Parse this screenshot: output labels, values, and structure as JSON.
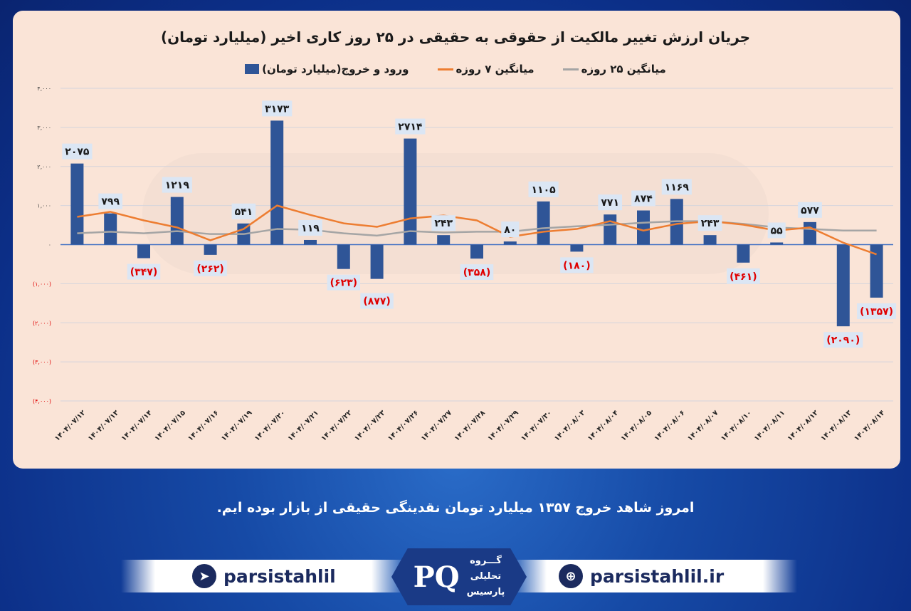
{
  "chart_data": {
    "type": "bar",
    "title": "جریان ارزش تغییر مالکیت از حقوقی به حقیقی در ۲۵ روز کاری اخیر (میلیارد تومان)",
    "xlabel": "",
    "ylabel": "",
    "ylim": [
      -4000,
      4000
    ],
    "y_ticks": [
      4000,
      3000,
      2000,
      1000,
      0,
      -1000,
      -2000,
      -3000,
      -4000
    ],
    "y_tick_labels": [
      "۴,۰۰۰",
      "۳,۰۰۰",
      "۲,۰۰۰",
      "۱,۰۰۰",
      "۰",
      "(۱,۰۰۰)",
      "(۲,۰۰۰)",
      "(۳,۰۰۰)",
      "(۴,۰۰۰)"
    ],
    "grid": true,
    "legend_position": "top",
    "categories": [
      "۱۴۰۴/۰۷/۱۲",
      "۱۴۰۴/۰۷/۱۳",
      "۱۴۰۴/۰۷/۱۴",
      "۱۴۰۴/۰۷/۱۵",
      "۱۴۰۴/۰۷/۱۶",
      "۱۴۰۴/۰۷/۱۹",
      "۱۴۰۴/۰۷/۲۰",
      "۱۴۰۴/۰۷/۲۱",
      "۱۴۰۴/۰۷/۲۲",
      "۱۴۰۴/۰۷/۲۳",
      "۱۴۰۴/۰۷/۲۶",
      "۱۴۰۴/۰۷/۲۷",
      "۱۴۰۴/۰۷/۲۸",
      "۱۴۰۴/۰۷/۲۹",
      "۱۴۰۴/۰۷/۳۰",
      "۱۴۰۴/۰۸/۰۳",
      "۱۴۰۴/۰۸/۰۴",
      "۱۴۰۴/۰۸/۰۵",
      "۱۴۰۴/۰۸/۰۶",
      "۱۴۰۴/۰۸/۰۷",
      "۱۴۰۴/۰۸/۱۰",
      "۱۴۰۴/۰۸/۱۱",
      "۱۴۰۴/۰۸/۱۲",
      "۱۴۰۴/۰۸/۱۳",
      "۱۴۰۴/۰۸/۱۴"
    ],
    "series": [
      {
        "name": "ورود و خروج(میلیارد تومان)",
        "type": "bar",
        "color": "#2f5597",
        "values": [
          2075,
          799,
          -347,
          1219,
          -262,
          541,
          3173,
          119,
          -623,
          -877,
          2714,
          243,
          -358,
          80,
          1105,
          -180,
          771,
          874,
          1169,
          243,
          -461,
          55,
          577,
          -2090,
          -1357
        ],
        "labels": [
          "۲۰۷۵",
          "۷۹۹",
          "(۳۴۷)",
          "۱۲۱۹",
          "(۲۶۲)",
          "۵۴۱",
          "۳۱۷۳",
          "۱۱۹",
          "(۶۲۳)",
          "(۸۷۷)",
          "۲۷۱۴",
          "۲۴۳",
          "(۳۵۸)",
          "۸۰",
          "۱۱۰۵",
          "(۱۸۰)",
          "۷۷۱",
          "۸۷۴",
          "۱۱۶۹",
          "۲۴۳",
          "(۴۶۱)",
          "۵۵",
          "۵۷۷",
          "(۲۰۹۰)",
          "(۱۳۵۷)"
        ]
      },
      {
        "name": "میانگین ۷ روزه",
        "type": "line",
        "color": "#ed7d31",
        "values": [
          710,
          840,
          620,
          440,
          110,
          400,
          1000,
          760,
          545,
          455,
          670,
          745,
          620,
          200,
          330,
          400,
          600,
          360,
          530,
          600,
          510,
          360,
          440,
          50,
          -250
        ]
      },
      {
        "name": "میانگین ۲۵ روزه",
        "type": "line",
        "color": "#a5a5a5",
        "values": [
          290,
          330,
          290,
          345,
          270,
          270,
          400,
          380,
          290,
          230,
          345,
          310,
          330,
          330,
          420,
          470,
          510,
          560,
          600,
          600,
          530,
          440,
          400,
          360,
          360
        ]
      }
    ],
    "colors": {
      "positive_label": "#1a1a1a",
      "negative_label": "#e00000",
      "label_bg": "#dbe6f4"
    }
  },
  "watermark": "@Parsistahlil",
  "caption": "امروز شاهد خروج ۱۳۵۷ میلیارد تومان نقدینگی حقیقی از بازار بوده ایم.",
  "footer": {
    "telegram": "parsistahlil",
    "website": "parsistahlil.ir",
    "logo_text": [
      "گـــروه",
      "تحلیلی",
      "پارسیس"
    ]
  }
}
